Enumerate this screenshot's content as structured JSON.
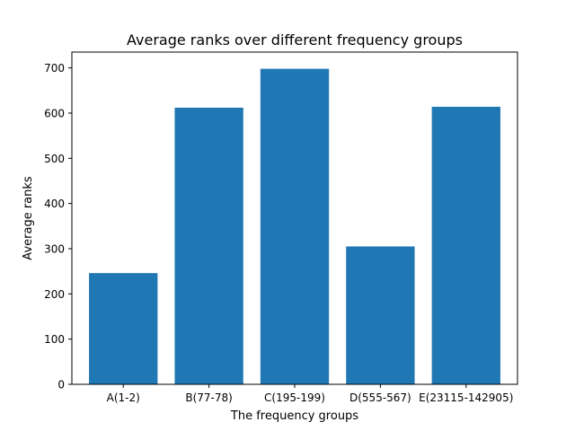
{
  "chart_data": {
    "type": "bar",
    "title": "Average ranks over different frequency groups",
    "xlabel": "The frequency groups",
    "ylabel": "Average ranks",
    "categories": [
      "A(1-2)",
      "B(77-78)",
      "C(195-199)",
      "D(555-567)",
      "E(23115-142905)"
    ],
    "values": [
      246,
      612,
      698,
      305,
      614
    ],
    "ylim": [
      0,
      735
    ],
    "yticks": [
      0,
      100,
      200,
      300,
      400,
      500,
      600,
      700
    ],
    "bar_color": "#1f77b4",
    "grid": false,
    "legend": false
  }
}
